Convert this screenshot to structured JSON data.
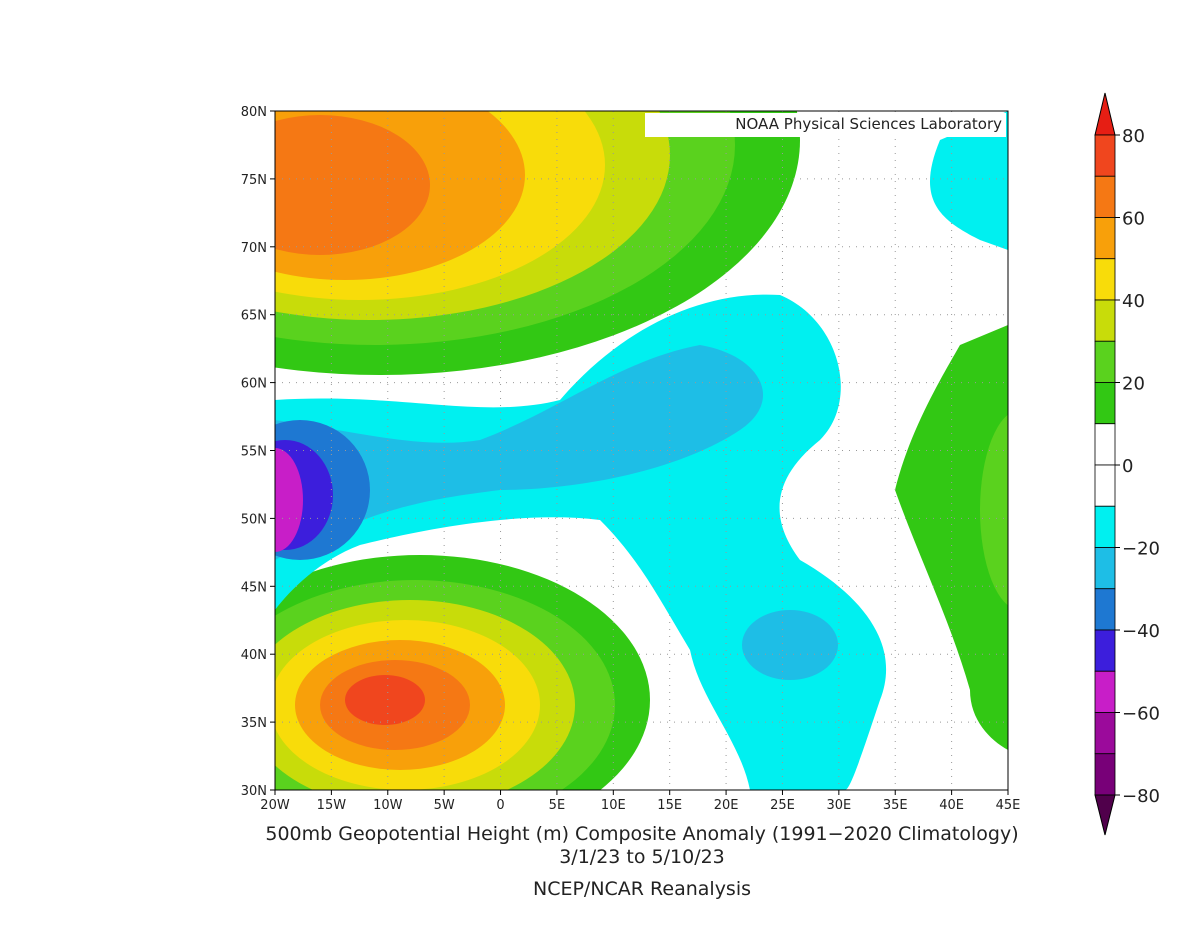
{
  "watermark": "NOAA Physical Sciences Laboratory",
  "map": {
    "xticks": [
      "20W",
      "15W",
      "10W",
      "5W",
      "0",
      "5E",
      "10E",
      "15E",
      "20E",
      "25E",
      "30E",
      "35E",
      "40E",
      "45E"
    ],
    "yticks": [
      "80N",
      "75N",
      "70N",
      "65N",
      "60N",
      "55N",
      "50N",
      "45N",
      "40N",
      "35N",
      "30N"
    ]
  },
  "caption": [
    "500mb Geopotential Height (m) Composite Anomaly (1991−2020 Climatology)",
    "3/1/23  to 5/10/23",
    "NCEP/NCAR Reanalysis"
  ],
  "colorbar": {
    "ticks": [
      80,
      60,
      40,
      20,
      0,
      {
        "value": -20,
        "label": "−20"
      },
      {
        "value": -40,
        "label": "−40"
      },
      {
        "value": -60,
        "label": "−60"
      },
      {
        "value": -80,
        "label": "−80"
      }
    ],
    "over_color": "#e61e14",
    "under_color": "#50004b",
    "colors": [
      "#f0461e",
      "#f57814",
      "#f8a00a",
      "#f8dc0a",
      "#c8dc0a",
      "#5ad21e",
      "#32c814",
      "#ffffff",
      "#ffffff",
      "#00f0f0",
      "#1ebee6",
      "#1e78d2",
      "#3c1edc",
      "#c81ec8",
      "#9b0a9b",
      "#780078"
    ]
  }
}
